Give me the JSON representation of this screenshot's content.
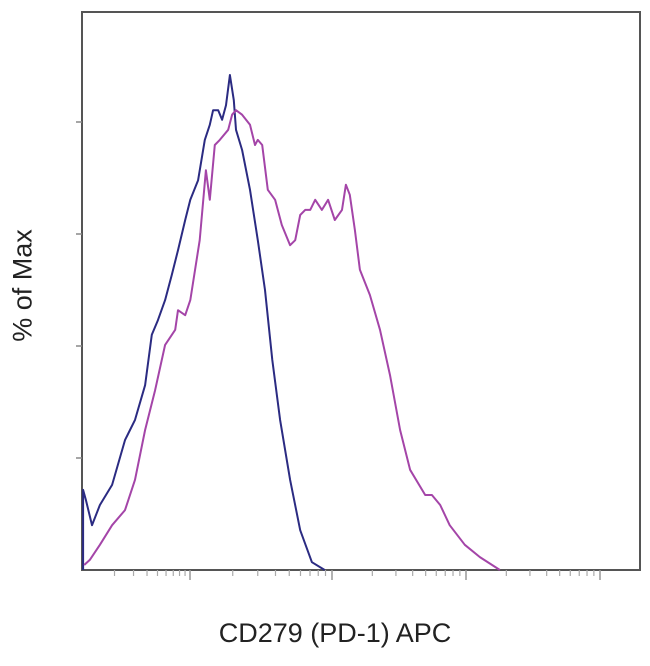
{
  "chart_data": {
    "type": "line",
    "title": "",
    "xlabel": "CD279 (PD-1) APC",
    "ylabel": "% of Max",
    "x_scale": "log (unlabeled), values given as percent of axis range",
    "xlim": [
      0,
      100
    ],
    "ylim": [
      0,
      100
    ],
    "yticks": [
      0,
      20,
      40,
      60,
      80,
      100
    ],
    "grid": false,
    "legend": "none",
    "series": [
      {
        "color": "#2b2b82",
        "points": [
          [
            0.2,
            0
          ],
          [
            0.2,
            14.3
          ],
          [
            0.7,
            12.5
          ],
          [
            1.8,
            8.0
          ],
          [
            3.2,
            11.6
          ],
          [
            5.4,
            15.2
          ],
          [
            7.7,
            23.2
          ],
          [
            9.5,
            26.8
          ],
          [
            11.3,
            33.0
          ],
          [
            12.5,
            42.0
          ],
          [
            13.6,
            44.6
          ],
          [
            14.9,
            48.2
          ],
          [
            16.1,
            52.7
          ],
          [
            17.2,
            57.1
          ],
          [
            18.5,
            62.5
          ],
          [
            19.4,
            66.1
          ],
          [
            20.8,
            69.6
          ],
          [
            22.0,
            76.8
          ],
          [
            22.9,
            79.5
          ],
          [
            23.5,
            82.1
          ],
          [
            24.4,
            82.1
          ],
          [
            25.1,
            80.4
          ],
          [
            25.8,
            83.0
          ],
          [
            26.5,
            88.4
          ],
          [
            27.2,
            83.9
          ],
          [
            27.6,
            78.6
          ],
          [
            28.7,
            75.0
          ],
          [
            30.1,
            67.9
          ],
          [
            31.5,
            58.9
          ],
          [
            32.8,
            50.0
          ],
          [
            34.1,
            37.5
          ],
          [
            35.5,
            26.8
          ],
          [
            37.3,
            16.1
          ],
          [
            39.1,
            7.1
          ],
          [
            41.2,
            1.4
          ],
          [
            43.5,
            0
          ]
        ]
      },
      {
        "color": "#a445a8",
        "points": [
          [
            0.4,
            0.9
          ],
          [
            1.4,
            1.8
          ],
          [
            3.2,
            4.5
          ],
          [
            5.4,
            8.0
          ],
          [
            7.7,
            10.7
          ],
          [
            9.5,
            16.1
          ],
          [
            11.3,
            25.0
          ],
          [
            13.1,
            32.1
          ],
          [
            14.9,
            40.2
          ],
          [
            16.7,
            42.9
          ],
          [
            17.2,
            46.4
          ],
          [
            18.5,
            45.5
          ],
          [
            19.4,
            48.2
          ],
          [
            21.1,
            58.9
          ],
          [
            22.2,
            71.4
          ],
          [
            22.9,
            66.1
          ],
          [
            23.8,
            75.9
          ],
          [
            24.7,
            76.8
          ],
          [
            26.2,
            78.6
          ],
          [
            26.9,
            81.3
          ],
          [
            27.6,
            82.1
          ],
          [
            28.7,
            81.3
          ],
          [
            30.1,
            79.5
          ],
          [
            31.0,
            75.9
          ],
          [
            31.5,
            76.8
          ],
          [
            32.3,
            75.9
          ],
          [
            33.3,
            67.9
          ],
          [
            34.6,
            66.1
          ],
          [
            35.8,
            61.6
          ],
          [
            37.3,
            58.0
          ],
          [
            38.2,
            58.9
          ],
          [
            39.1,
            63.4
          ],
          [
            40.0,
            64.3
          ],
          [
            40.9,
            64.3
          ],
          [
            41.8,
            66.1
          ],
          [
            43.0,
            64.3
          ],
          [
            44.1,
            66.1
          ],
          [
            45.3,
            62.5
          ],
          [
            46.6,
            64.3
          ],
          [
            47.3,
            68.8
          ],
          [
            48.0,
            67.0
          ],
          [
            48.9,
            60.7
          ],
          [
            49.8,
            53.6
          ],
          [
            51.6,
            49.1
          ],
          [
            53.4,
            42.9
          ],
          [
            55.2,
            34.8
          ],
          [
            57.0,
            25.0
          ],
          [
            58.8,
            17.9
          ],
          [
            61.5,
            13.4
          ],
          [
            62.7,
            13.4
          ],
          [
            64.2,
            11.6
          ],
          [
            65.9,
            8.0
          ],
          [
            68.6,
            4.5
          ],
          [
            71.3,
            2.3
          ],
          [
            74.9,
            0
          ]
        ]
      }
    ]
  }
}
